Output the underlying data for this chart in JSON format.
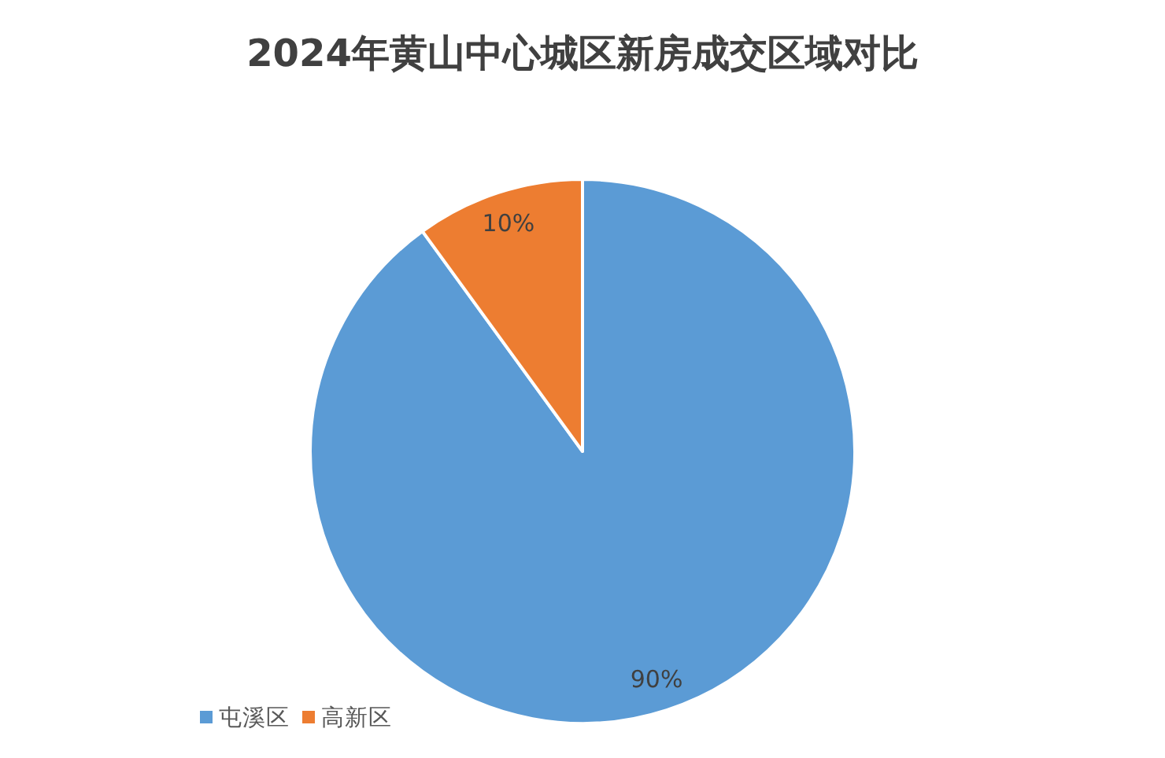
{
  "chart_data": {
    "type": "pie",
    "title": "2024年黄山中心城区新房成交区域对比",
    "categories": [
      "屯溪区",
      "高新区"
    ],
    "values": [
      90,
      10
    ],
    "colors": [
      "#5b9bd5",
      "#ed7d31"
    ],
    "value_labels": [
      "90%",
      "10%"
    ],
    "legend": "bottom left"
  }
}
